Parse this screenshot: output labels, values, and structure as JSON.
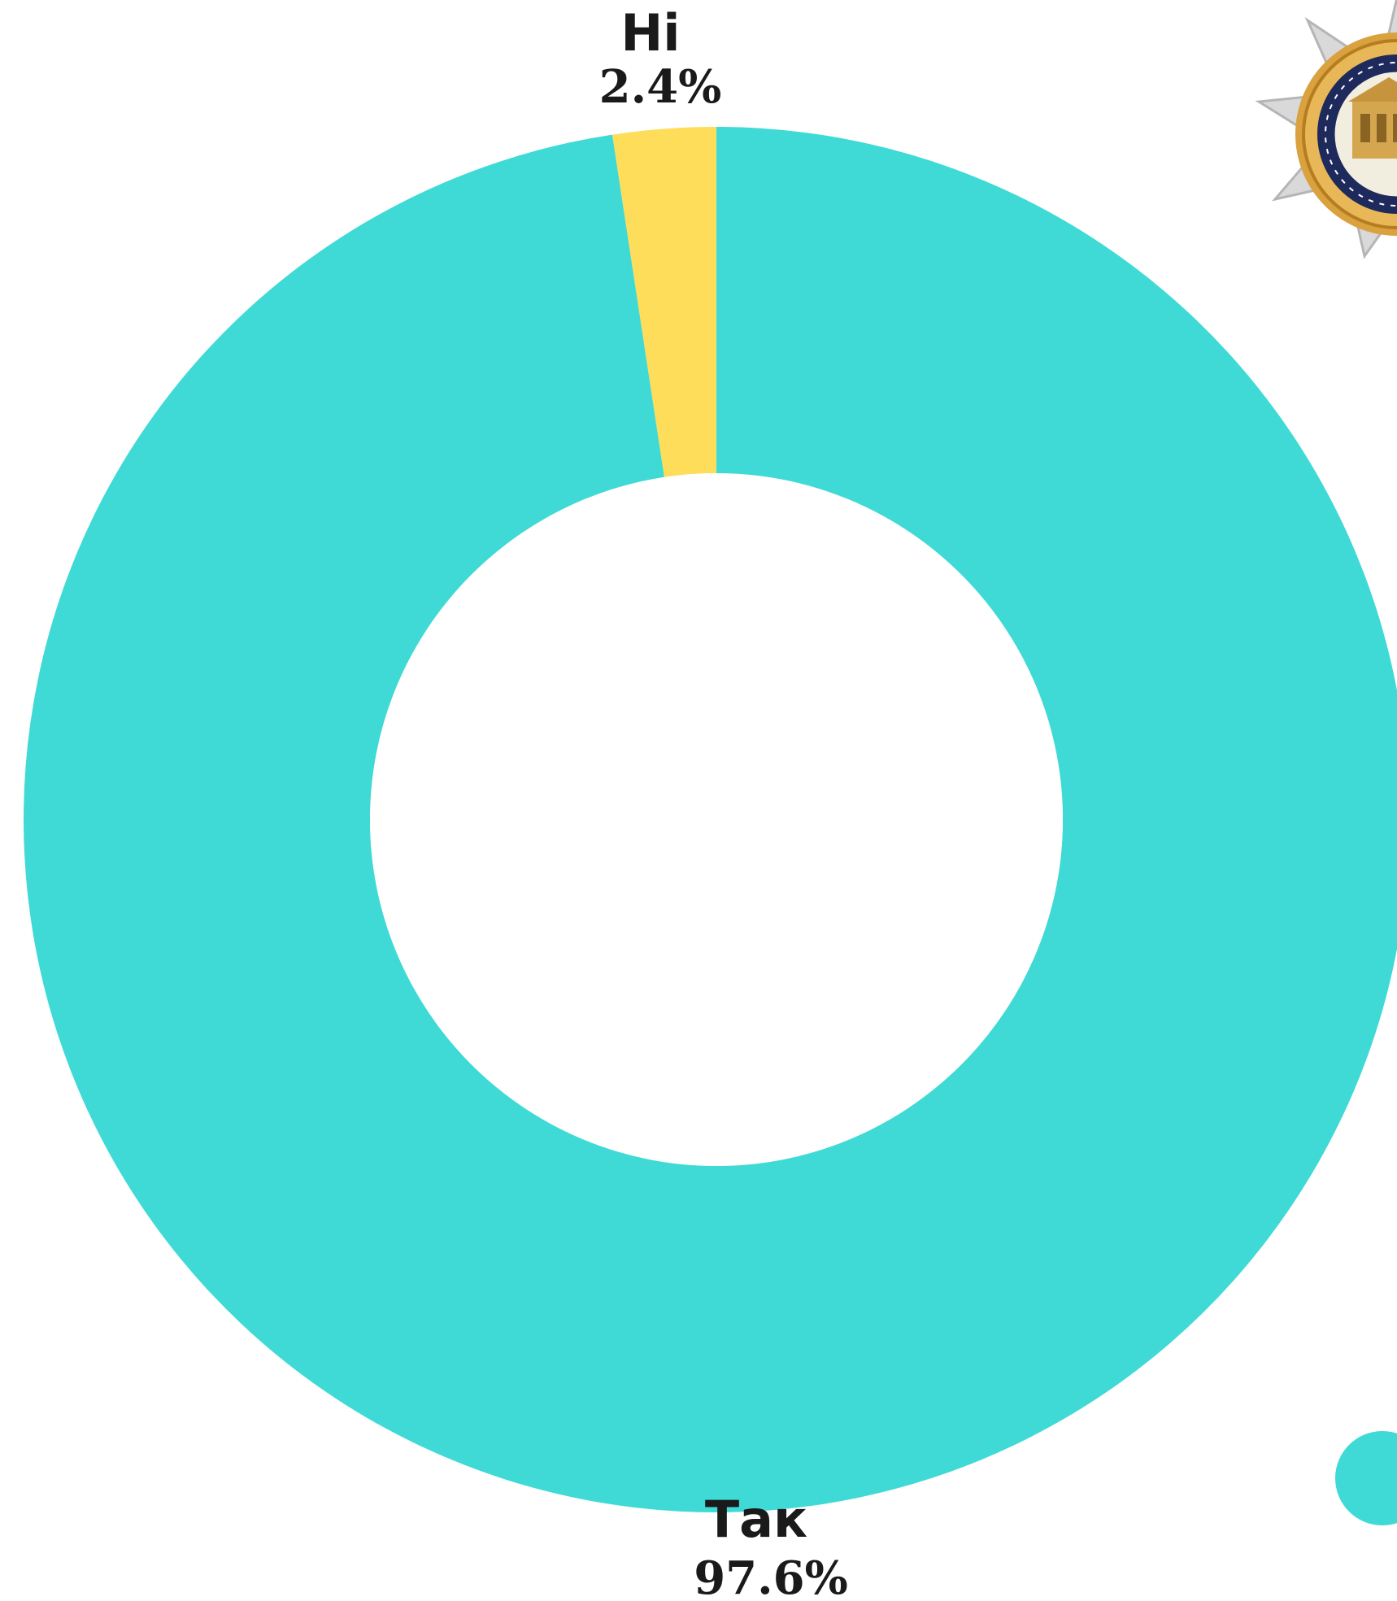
{
  "chart_data": {
    "type": "pie",
    "style": "donut",
    "slices": [
      {
        "label": "Так",
        "value": 97.6,
        "display": "97.6%",
        "color": "#3fdad6"
      },
      {
        "label": "Ні",
        "value": 2.4,
        "display": "2.4%",
        "color": "#fedd5a"
      }
    ],
    "legend": "right"
  },
  "logo": {
    "icon": "university-seal-icon"
  }
}
